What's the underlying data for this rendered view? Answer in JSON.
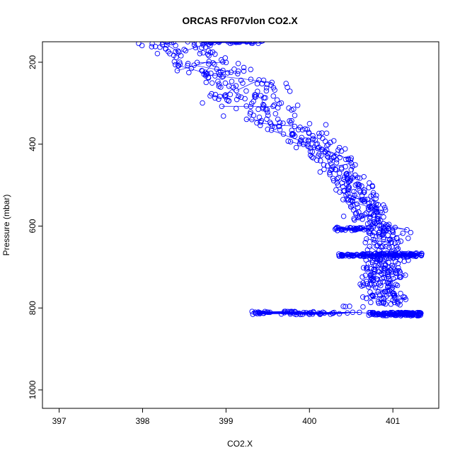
{
  "chart_data": {
    "type": "scatter",
    "title": "ORCAS RF07vlon CO2.X",
    "xlabel": "CO2.X",
    "ylabel": "Pressure (mbar)",
    "xlim": [
      396.8,
      401.55
    ],
    "ylim": [
      1045,
      150
    ],
    "y_reversed": true,
    "x_ticks": [
      397,
      398,
      399,
      400,
      401
    ],
    "y_ticks": [
      200,
      400,
      600,
      800,
      1000
    ],
    "marker": "open-circle",
    "connected": true,
    "grid": false,
    "legend": "none",
    "series_color": "#0000ff",
    "knots": [
      [
        150,
        398.3,
        0.5
      ],
      [
        190,
        398.6,
        0.55
      ],
      [
        250,
        399.2,
        0.6
      ],
      [
        300,
        399.3,
        0.6
      ],
      [
        350,
        399.6,
        0.6
      ],
      [
        400,
        400.1,
        0.4
      ],
      [
        450,
        400.35,
        0.3
      ],
      [
        500,
        400.5,
        0.28
      ],
      [
        550,
        400.65,
        0.3
      ],
      [
        600,
        400.8,
        0.4
      ],
      [
        650,
        400.95,
        0.35
      ],
      [
        700,
        400.9,
        0.3
      ],
      [
        750,
        400.85,
        0.3
      ],
      [
        790,
        400.95,
        0.35
      ],
      [
        800,
        400.5,
        0.6
      ]
    ],
    "clusters": [
      {
        "pressure": 150,
        "x_from": 398.7,
        "x_to": 399.45,
        "count": 45
      },
      {
        "pressure": 607,
        "x_from": 400.3,
        "x_to": 400.75,
        "count": 30
      },
      {
        "pressure": 670,
        "x_from": 400.35,
        "x_to": 401.35,
        "count": 110
      },
      {
        "pressure": 812,
        "x_from": 399.3,
        "x_to": 400.6,
        "count": 55
      },
      {
        "pressure": 815,
        "x_from": 400.7,
        "x_to": 401.35,
        "count": 110
      }
    ]
  }
}
